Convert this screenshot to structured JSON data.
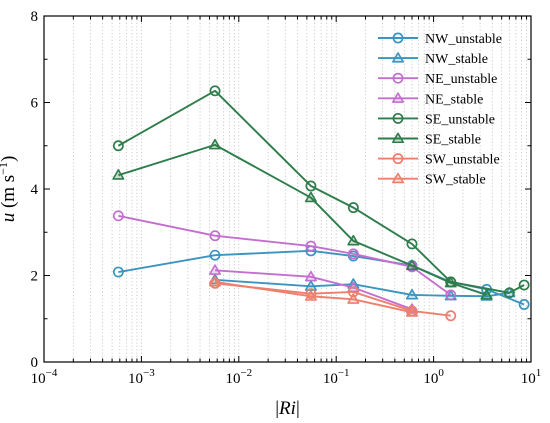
{
  "chart_data": {
    "type": "line",
    "x_scale": "log",
    "xlim": [
      0.0001,
      10
    ],
    "ylim": [
      0,
      8
    ],
    "grid": "x minor dotted",
    "legend_position": "top-right",
    "xlabel": {
      "prefix": "|",
      "var": "Ri",
      "suffix": "|"
    },
    "ylabel": {
      "var": "u",
      "unit": " (m s",
      "exp": "−1",
      "close": ")"
    },
    "x_ticks": [
      {
        "value": 0.0001,
        "base": "10",
        "exp": "−4"
      },
      {
        "value": 0.001,
        "base": "10",
        "exp": "−3"
      },
      {
        "value": 0.01,
        "base": "10",
        "exp": "−2"
      },
      {
        "value": 0.1,
        "base": "10",
        "exp": "−1"
      },
      {
        "value": 1,
        "base": "10",
        "exp": "0"
      },
      {
        "value": 10,
        "base": "10",
        "exp": "1"
      }
    ],
    "y_ticks": [
      "0",
      "2",
      "4",
      "6",
      "8"
    ],
    "series": [
      {
        "name": "NW_unstable",
        "color": "#3a95c1",
        "marker": "circle",
        "x": [
          0.00058,
          0.0057,
          0.055,
          0.15,
          0.6,
          1.5,
          3.5,
          8.5
        ],
        "y": [
          2.08,
          2.47,
          2.57,
          2.45,
          2.23,
          1.85,
          1.68,
          1.33
        ]
      },
      {
        "name": "NW_stable",
        "color": "#3a95c1",
        "marker": "triangle",
        "x": [
          0.0057,
          0.055,
          0.15,
          0.6,
          1.5,
          3.5,
          6
        ],
        "y": [
          1.9,
          1.75,
          1.8,
          1.55,
          1.53,
          1.52,
          1.6
        ]
      },
      {
        "name": "NE_unstable",
        "color": "#c46fd0",
        "marker": "circle",
        "x": [
          0.00058,
          0.0057,
          0.055,
          0.15,
          0.6,
          1.5
        ],
        "y": [
          3.38,
          2.92,
          2.68,
          2.5,
          2.2,
          1.55
        ]
      },
      {
        "name": "NE_stable",
        "color": "#c46fd0",
        "marker": "triangle",
        "x": [
          0.0057,
          0.055,
          0.15,
          0.6
        ],
        "y": [
          2.12,
          1.97,
          1.72,
          1.22
        ]
      },
      {
        "name": "SE_unstable",
        "color": "#2e7d4a",
        "marker": "circle",
        "x": [
          0.00058,
          0.0057,
          0.055,
          0.15,
          0.6,
          1.5,
          6,
          8.5
        ],
        "y": [
          5.0,
          6.27,
          4.07,
          3.57,
          2.73,
          1.85,
          1.6,
          1.78
        ]
      },
      {
        "name": "SE_stable",
        "color": "#2e7d4a",
        "marker": "triangle",
        "x": [
          0.00058,
          0.0057,
          0.055,
          0.15,
          0.6,
          1.5,
          3.5
        ],
        "y": [
          4.32,
          5.02,
          3.8,
          2.8,
          2.23,
          1.83,
          1.55
        ]
      },
      {
        "name": "SW_unstable",
        "color": "#ee7f6d",
        "marker": "circle",
        "x": [
          0.0057,
          0.055,
          0.15,
          0.6,
          1.5
        ],
        "y": [
          1.82,
          1.58,
          1.62,
          1.18,
          1.07
        ]
      },
      {
        "name": "SW_stable",
        "color": "#ee7f6d",
        "marker": "triangle",
        "x": [
          0.0057,
          0.055,
          0.15,
          0.6
        ],
        "y": [
          1.85,
          1.52,
          1.45,
          1.15
        ]
      }
    ]
  }
}
